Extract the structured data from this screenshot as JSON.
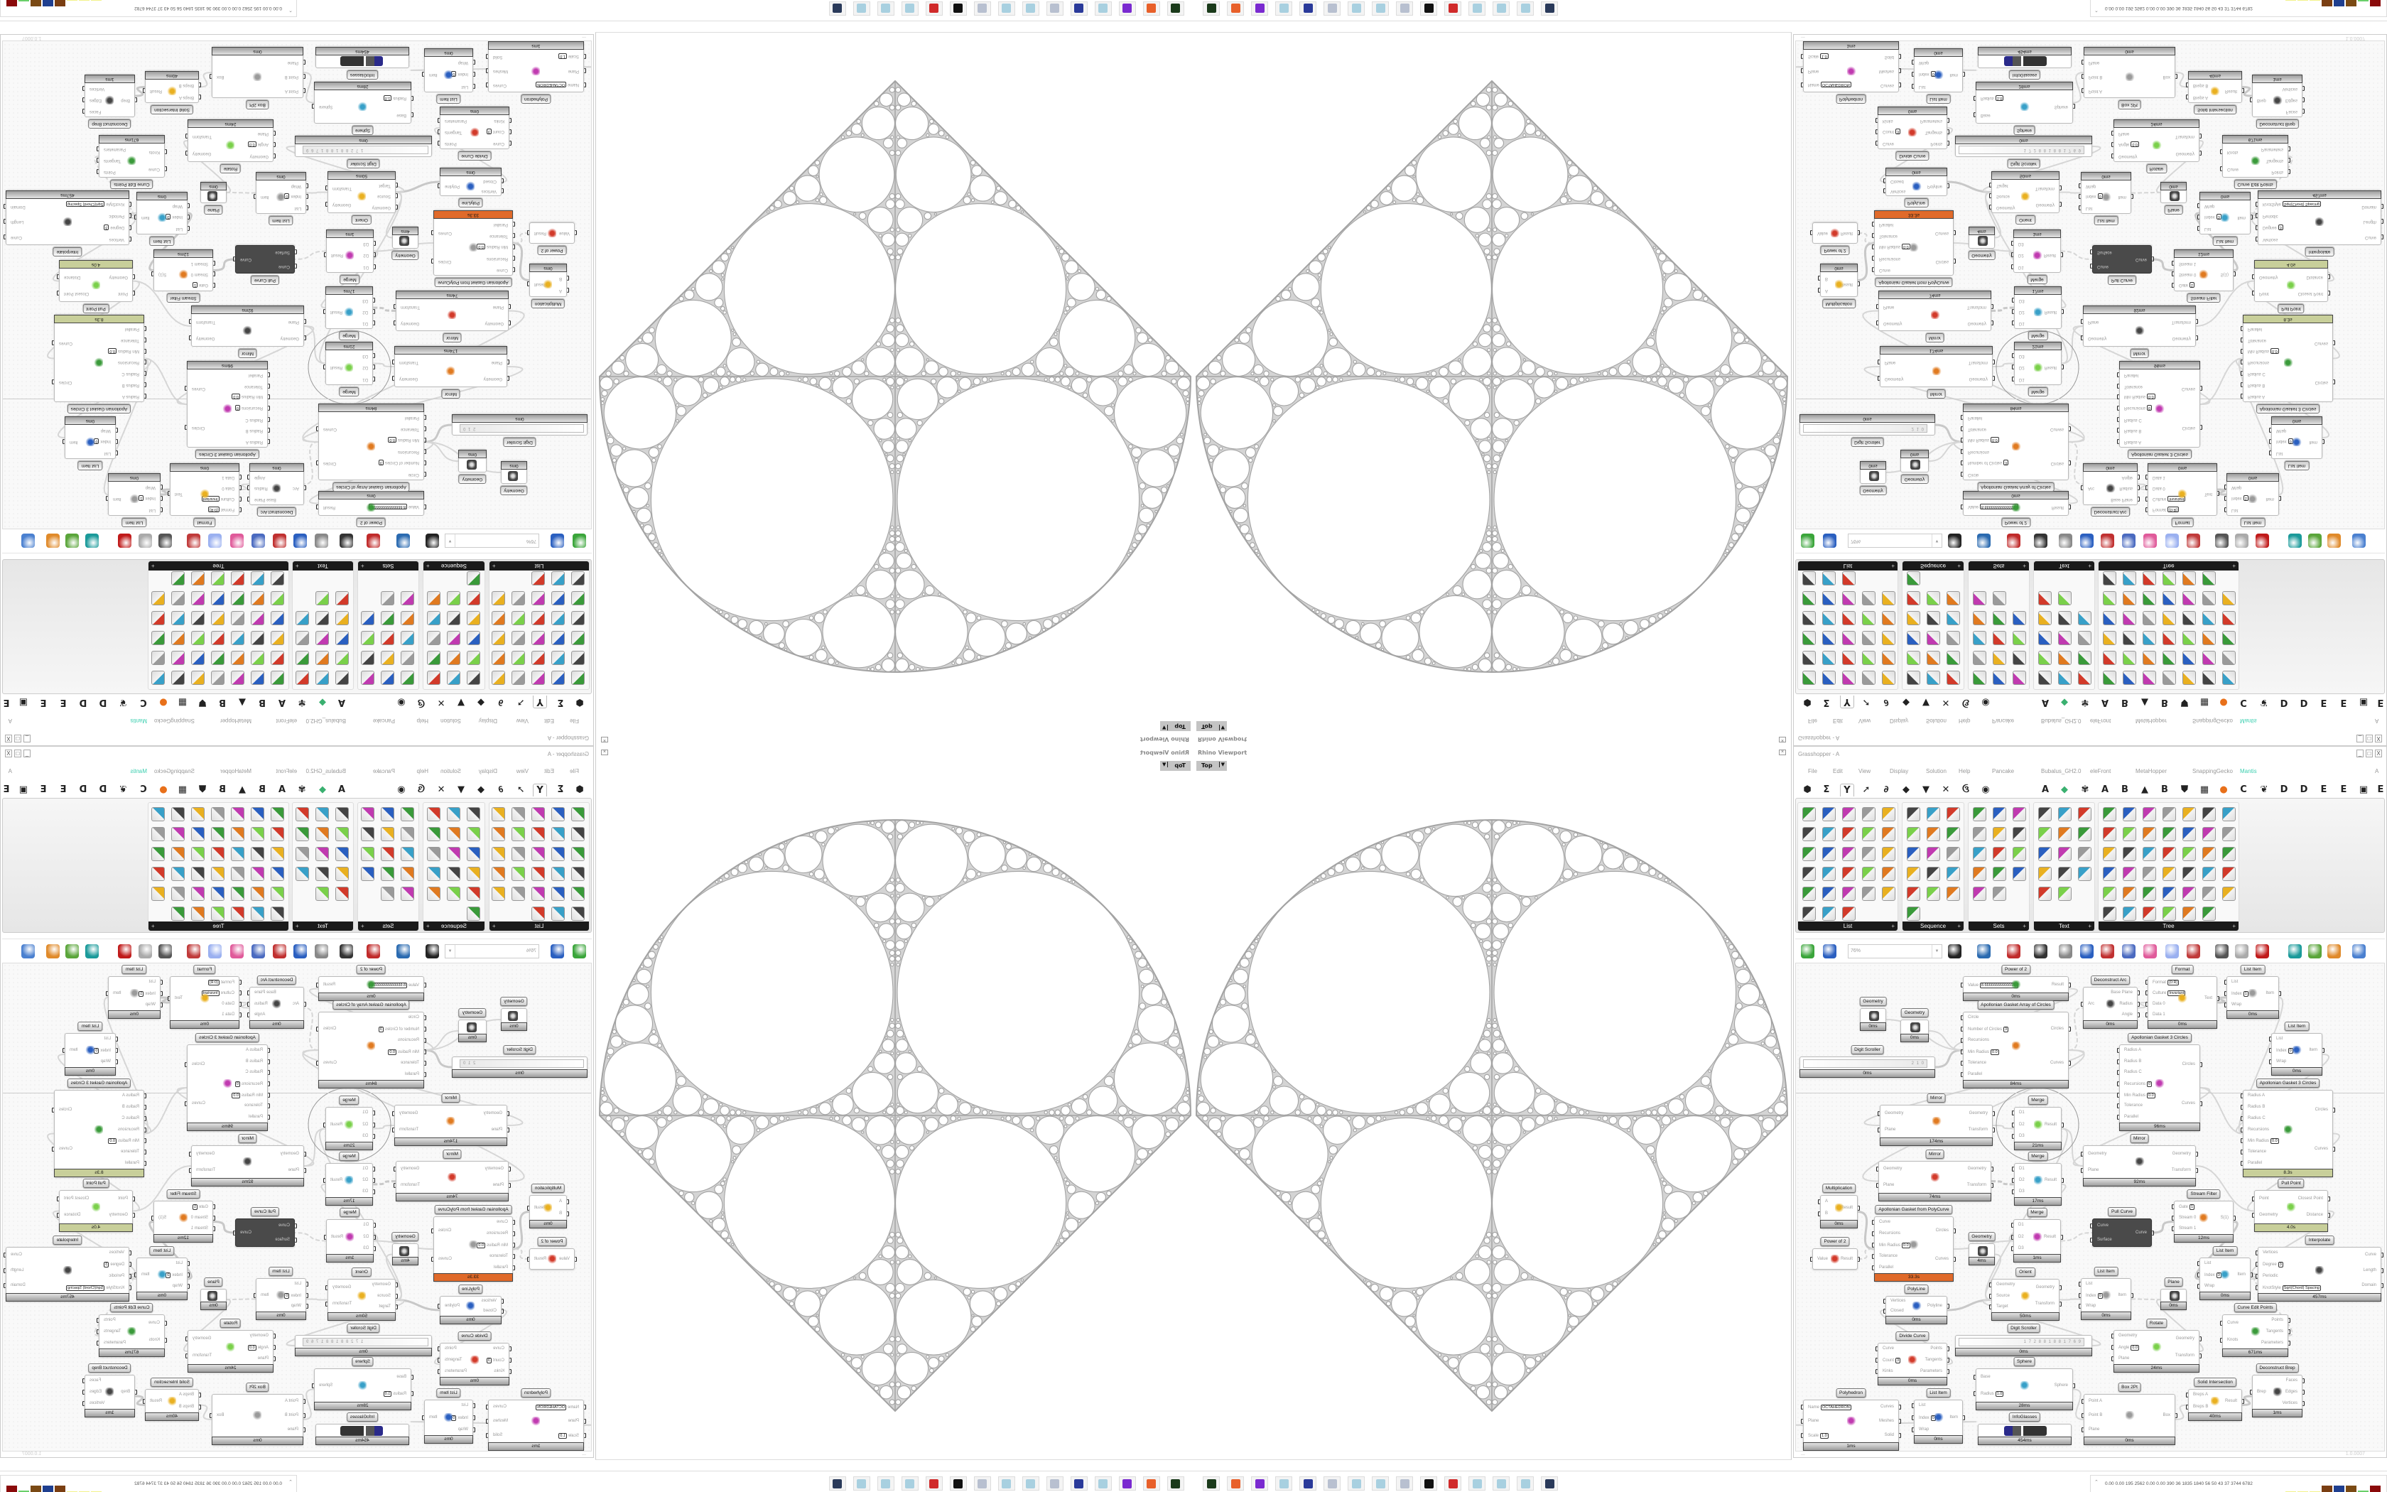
{
  "viewport": {
    "title": "Rhino Viewport",
    "view": "Top",
    "dropdown_icon": "chevron-down-icon",
    "close_icon": "close-icon",
    "stroke_color": "#a3a3a3"
  },
  "gh": {
    "title": "Grasshopper - A",
    "window_buttons": [
      "_",
      "□",
      "X"
    ],
    "menu": [
      "File",
      "Edit",
      "View",
      "Display",
      "Solution",
      "Help",
      "Pancake",
      "Bubalus_GH2.0",
      "eleFront",
      "MetaHopper",
      "SnappingGecko",
      "Mantis"
    ],
    "menu_right": "A",
    "accent_menu_color": "#3ccfb0",
    "tabs": [
      "⬢",
      "Σ",
      "Y",
      "➚",
      "∂",
      "◆",
      "▼",
      "✕",
      "ઉ",
      "◉",
      "A",
      "◆",
      "✾",
      "A",
      "B",
      "▲",
      "B",
      "⛊",
      "▦",
      "●",
      "C",
      "❦",
      "D",
      "D",
      "E",
      "E",
      "▣",
      "E"
    ],
    "selected_tab": 2,
    "panels": [
      {
        "label": "List",
        "icons": [
          "list-length",
          "list-item",
          "shift-list",
          "cull-index",
          "bar-graph",
          "insert-items",
          "partition-list",
          "split-list",
          "reverse-list",
          "sub-list",
          "dispatch",
          "replace-items",
          "weave",
          "pick-n-choose",
          "combine-data",
          "sort-list",
          "split-list-2",
          "cross-reference",
          "null-item",
          "shortest-list",
          "sift-pattern",
          "list-set",
          "cull-pattern",
          "random-reduce",
          "longest-list",
          "item-index",
          "shuffle",
          "create-set"
        ]
      },
      {
        "label": "Sequence",
        "icons": [
          "cull-nth",
          "series",
          "fibonacci",
          "cull-random",
          "duplicate-data",
          "stack-data",
          "cull-pattern",
          "char-sequence",
          "jitter",
          "cull-index",
          "random",
          "repeat-data",
          "char-grid",
          "spiral",
          "sequence-misc",
          "range-misc"
        ]
      },
      {
        "label": "Sets",
        "icons": [
          "set-union",
          "set-difference",
          "key-value",
          "set-delete",
          "set-replace",
          "member-index",
          "set-intersection",
          "set-wave",
          "set-majority",
          "set-multiply",
          "set-combination",
          "set-carthesian",
          "set-split",
          "set-people"
        ]
      },
      {
        "label": "Text",
        "icons": [
          "text-join",
          "text-fragment",
          "text-case",
          "text-split",
          "text-match",
          "text-length",
          "text-distance",
          "concatenate",
          "text-trim",
          "text-on-surface",
          "format",
          "sort-text",
          "char-list",
          "text-regex"
        ]
      },
      {
        "label": "Tree",
        "icons": [
          "graft",
          "path-mapper",
          "tree-statistics",
          "explode-tree",
          "match-tree",
          "prune-tree",
          "relative-item",
          "stump",
          "split-tree",
          "flip-matrix",
          "clean-tree",
          "simplify-tree",
          "trim-tree",
          "split-paths",
          "sprout",
          "tree-branch",
          "unflatten",
          "entwine",
          "shift-paths",
          "split-tree-2",
          "replace-paths",
          "flatten",
          "destructive",
          "step-tree",
          "tree-item",
          "merge-tree",
          "shorthand",
          "construct-path",
          "palm-tree",
          "match-paths",
          "fire-tree",
          "unique",
          "sub-branch",
          "deconstruct-path",
          "suirify",
          "graft-tree",
          "trees-misc",
          "tree-table",
          "pink-tree",
          "tree-stats",
          "unflip"
        ]
      }
    ],
    "toolbar": {
      "zoom": "76%",
      "icons": [
        "new-file-icon",
        "save-icon",
        "zoom-extents-icon",
        "preview-eye-icon",
        "sketch-icon",
        "fragment-icon",
        "email-icon",
        "gha-icon",
        "canvas-image-icon",
        "search-icon",
        "mystery-box-icon",
        "bulb-icon",
        "cross-icon",
        "shaded-preview-icon",
        "wire-preview-icon",
        "selected-preview-icon",
        "surface-icon",
        "curve-icon",
        "sphere-shading-icon",
        "blue-sphere-icon"
      ]
    },
    "time_colors": {
      "default": "#b8b8b8",
      "slow": "#c8cf9a",
      "very_slow": "#e06a2a"
    },
    "nodes": [
      {
        "title": "Power of 2",
        "inputs": [
          {
            "label": "Value",
            "value": "8.666666666666666"
          }
        ],
        "outputs": [
          "Result"
        ],
        "time": "0ms"
      },
      {
        "title": "Apollonian Gasket Array of Circles",
        "inputs": [
          {
            "label": "Circle"
          },
          {
            "label": "Number of Circles",
            "value": "3"
          },
          {
            "label": "Recursions"
          },
          {
            "label": "Min Radius",
            "value": "0.0"
          },
          {
            "label": "Tolerance"
          },
          {
            "label": "Parallel"
          }
        ],
        "outputs": [
          "Circles",
          "Curves"
        ],
        "time": "84ms"
      },
      {
        "title": "Geometry",
        "inputs": [],
        "outputs": [],
        "time": "0ms"
      },
      {
        "title": "Geometry",
        "inputs": [],
        "outputs": [],
        "time": "0ms"
      },
      {
        "title": "Digit Scroller",
        "inputs": [],
        "outputs": [],
        "time": "0ms",
        "scroller": "2 1 0"
      },
      {
        "title": "Deconstruct Arc",
        "inputs": [
          {
            "label": "Arc"
          }
        ],
        "outputs": [
          "Base Plane",
          "Radius",
          "Angle"
        ],
        "time": "0ms"
      },
      {
        "title": "Format",
        "inputs": [
          {
            "label": "Format",
            "value": "{0:R}"
          },
          {
            "label": "Culture",
            "value": "Invariant"
          },
          {
            "label": "Data 0"
          },
          {
            "label": "Data 1"
          }
        ],
        "outputs": [
          "Text"
        ],
        "time": "0ms"
      },
      {
        "title": "List Item",
        "inputs": [
          {
            "label": "List"
          },
          {
            "label": "Index",
            "value": "1"
          },
          {
            "label": "Wrap"
          }
        ],
        "outputs": [
          "Item"
        ],
        "time": "0ms"
      },
      {
        "title": "Apollonian Gasket 3 Circles",
        "inputs": [
          {
            "label": "Radius A"
          },
          {
            "label": "Radius B"
          },
          {
            "label": "Radius C"
          },
          {
            "label": "Recursions",
            "value": "0"
          },
          {
            "label": "Min Radius",
            "value": "0.0"
          },
          {
            "label": "Tolerance"
          },
          {
            "label": "Parallel"
          }
        ],
        "outputs": [
          "Circles",
          "Curves"
        ],
        "time": "96ms"
      },
      {
        "title": "List Item",
        "inputs": [
          {
            "label": "List"
          },
          {
            "label": "Index",
            "value": "0"
          },
          {
            "label": "Wrap"
          }
        ],
        "outputs": [
          "Item"
        ],
        "time": "0ms"
      },
      {
        "title": "Apollonian Gasket 3 Circles",
        "inputs": [
          {
            "label": "Radius A"
          },
          {
            "label": "Radius B"
          },
          {
            "label": "Radius C"
          },
          {
            "label": "Recursions"
          },
          {
            "label": "Min Radius",
            "value": "0.0"
          },
          {
            "label": "Tolerance"
          },
          {
            "label": "Parallel"
          }
        ],
        "outputs": [
          "Circles",
          "Curves"
        ],
        "time": "8.3s",
        "status": "slow"
      },
      {
        "title": "Mirror",
        "inputs": [
          {
            "label": "Geometry"
          },
          {
            "label": "Plane"
          }
        ],
        "outputs": [
          "Geometry",
          "Transform"
        ],
        "time": "174ms"
      },
      {
        "title": "Merge",
        "inputs": [
          {
            "label": "D1"
          },
          {
            "label": "D2"
          },
          {
            "label": "D3"
          }
        ],
        "outputs": [
          "Result"
        ],
        "time": "21ms"
      },
      {
        "title": "Mirror",
        "inputs": [
          {
            "label": "Geometry"
          },
          {
            "label": "Plane"
          }
        ],
        "outputs": [
          "Geometry",
          "Transform"
        ],
        "time": "74ms"
      },
      {
        "title": "Merge",
        "inputs": [
          {
            "label": "D1"
          },
          {
            "label": "D2"
          },
          {
            "label": "D3"
          }
        ],
        "outputs": [
          "Result"
        ],
        "time": "17ms"
      },
      {
        "title": "Mirror",
        "inputs": [
          {
            "label": "Geometry"
          },
          {
            "label": "Plane"
          }
        ],
        "outputs": [
          "Geometry",
          "Transform"
        ],
        "time": "92ms"
      },
      {
        "title": "Multiplication",
        "inputs": [
          {
            "label": "A"
          },
          {
            "label": "B"
          }
        ],
        "outputs": [
          "Result"
        ],
        "time": "0ms"
      },
      {
        "title": "Apollonian Gasket from PolyCurve",
        "inputs": [
          {
            "label": "Curve"
          },
          {
            "label": "Recursions"
          },
          {
            "label": "Min Radius",
            "value": "0.0"
          },
          {
            "label": "Tolerance"
          },
          {
            "label": "Parallel"
          }
        ],
        "outputs": [
          "Circles",
          "Curves"
        ],
        "time": "33.3s",
        "status": "very_slow"
      },
      {
        "title": "Merge",
        "inputs": [
          {
            "label": "D1"
          },
          {
            "label": "D2"
          },
          {
            "label": "D3"
          }
        ],
        "outputs": [
          "Result"
        ],
        "time": "1ms"
      },
      {
        "title": "Geometry",
        "inputs": [],
        "outputs": [],
        "time": "4ms"
      },
      {
        "title": "Pull Curve",
        "inputs": [
          {
            "label": "Curve"
          },
          {
            "label": "Surface"
          }
        ],
        "outputs": [
          "Curve"
        ],
        "dark": true
      },
      {
        "title": "Stream Filter",
        "inputs": [
          {
            "label": "Gate",
            "value": "1"
          },
          {
            "label": "Stream 0"
          },
          {
            "label": "Stream 1"
          }
        ],
        "outputs": [
          "S(1)"
        ],
        "time": "12ms"
      },
      {
        "title": "Pull Point",
        "inputs": [
          {
            "label": "Point"
          },
          {
            "label": "Geometry"
          }
        ],
        "outputs": [
          "Closest Point",
          "Distance"
        ],
        "time": "4.0s",
        "status": "slow"
      },
      {
        "title": "Power of 2",
        "inputs": [
          {
            "label": "Value"
          }
        ],
        "outputs": [
          "Result"
        ]
      },
      {
        "title": "List Item",
        "inputs": [
          {
            "label": "List"
          },
          {
            "label": "Index",
            "value": "3"
          },
          {
            "label": "Wrap"
          }
        ],
        "outputs": [
          "Item"
        ],
        "time": "0ms"
      },
      {
        "title": "Interpolate",
        "inputs": [
          {
            "label": "Vertices"
          },
          {
            "label": "Degree",
            "value": "3"
          },
          {
            "label": "Periodic"
          },
          {
            "label": "KnotStyle",
            "value": "Sqrt(Chord) Spacing"
          }
        ],
        "outputs": [
          "Curve",
          "Length",
          "Domain"
        ],
        "time": "457ms"
      },
      {
        "title": "Orient",
        "inputs": [
          {
            "label": "Geometry"
          },
          {
            "label": "Source"
          },
          {
            "label": "Target"
          }
        ],
        "outputs": [
          "Geometry",
          "Transform"
        ],
        "time": "50ms"
      },
      {
        "title": "List Item",
        "inputs": [
          {
            "label": "List"
          },
          {
            "label": "Index",
            "value": "0"
          },
          {
            "label": "Wrap"
          }
        ],
        "outputs": [
          "Item"
        ],
        "time": "0ms"
      },
      {
        "title": "Plane",
        "inputs": [],
        "outputs": [],
        "time": "0ms"
      },
      {
        "title": "PolyLine",
        "inputs": [
          {
            "label": "Vertices"
          },
          {
            "label": "Closed"
          }
        ],
        "outputs": [
          "Polyline"
        ],
        "time": "0ms"
      },
      {
        "title": "Curve Edit Points",
        "inputs": [
          {
            "label": "Curve"
          },
          {
            "label": "Knots"
          }
        ],
        "outputs": [
          "Points",
          "Tangents",
          "Parameters"
        ],
        "time": "671ms"
      },
      {
        "title": "Digit Scroller",
        "inputs": [],
        "outputs": [],
        "time": "0ms",
        "scroller": "1 7 2 8 8 1 8 8 1 7 6 9"
      },
      {
        "title": "Rotate",
        "inputs": [
          {
            "label": "Geometry"
          },
          {
            "label": "Angle",
            "value": "0.0"
          },
          {
            "label": "Plane"
          }
        ],
        "outputs": [
          "Geometry",
          "Transform"
        ],
        "time": "24ms"
      },
      {
        "title": "Divide Curve",
        "inputs": [
          {
            "label": "Curve"
          },
          {
            "label": "Count",
            "value": "3"
          },
          {
            "label": "Kinks"
          }
        ],
        "outputs": [
          "Points",
          "Tangents",
          "Parameters"
        ],
        "time": "0ms"
      },
      {
        "title": "Sphere",
        "inputs": [
          {
            "label": "Base"
          },
          {
            "label": "Radius",
            "value": "1.0"
          }
        ],
        "outputs": [
          "Sphere"
        ],
        "time": "28ms"
      },
      {
        "title": "Deconstruct Brep",
        "inputs": [
          {
            "label": "Brep"
          }
        ],
        "outputs": [
          "Faces",
          "Edges",
          "Vertices"
        ],
        "time": "1ms"
      },
      {
        "title": "Solid Intersection",
        "inputs": [
          {
            "label": "Breps A"
          },
          {
            "label": "Breps B"
          }
        ],
        "outputs": [
          "Result"
        ],
        "time": "40ms"
      },
      {
        "title": "Box 2Pt",
        "inputs": [
          {
            "label": "Point A"
          },
          {
            "label": "Point B"
          },
          {
            "label": "Plane"
          }
        ],
        "outputs": [
          "Box"
        ],
        "time": "0ms"
      },
      {
        "title": "Polyhedron",
        "inputs": [
          {
            "label": "Name",
            "value": "OCTAHEDRON"
          },
          {
            "label": "Plane"
          },
          {
            "label": "Scale",
            "value": "1.0"
          }
        ],
        "outputs": [
          "Curves",
          "Meshes",
          "Solid"
        ],
        "time": "1ms"
      },
      {
        "title": "List Item",
        "inputs": [
          {
            "label": "List"
          },
          {
            "label": "Index",
            "value": "0"
          },
          {
            "label": "Wrap"
          }
        ],
        "outputs": [
          "Item"
        ],
        "time": "0ms"
      },
      {
        "title": "InfoGlasses",
        "inputs": [],
        "outputs": [],
        "time": "454ms"
      }
    ],
    "status_left": "...",
    "version": "1.0.0007"
  },
  "taskbar": {
    "icons": [
      "app-monitor-icon",
      "firefox-icon",
      "discord-icon",
      "notepad-icon",
      "floppy-64-icon",
      "scroll-icon",
      "notepad-icon",
      "notepad-icon",
      "scroll-icon",
      "rhino-icon",
      "settings-red-icon",
      "notepad-icon",
      "notepad-icon",
      "notepad-icon",
      "remote-desktop-icon"
    ],
    "status": "0.00 0.00 195 2562 0.00 0.00 390 36 1835 1840 56 50 43 37 3744 6782",
    "meter_colors": [
      "#f2f28a",
      "#f2f28a",
      "#f2f28a",
      "#7a3e12",
      "#1f3f8f",
      "#7a4a14",
      "#6ad06a",
      "#8a0a0a"
    ]
  }
}
